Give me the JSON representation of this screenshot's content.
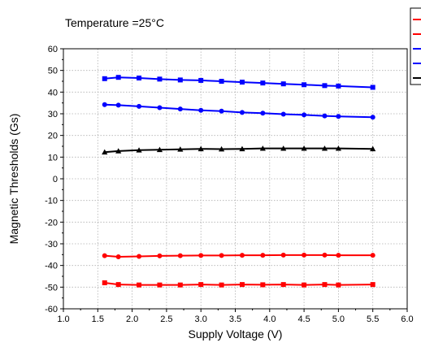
{
  "chart_data": {
    "type": "line",
    "annotation": "Temperature =25°C",
    "xlabel": "Supply Voltage (V)",
    "ylabel": "Magnetic Thresholds (Gs)",
    "xlim": [
      1.0,
      6.0
    ],
    "ylim": [
      -60,
      60
    ],
    "x_ticks": [
      "1.0",
      "1.5",
      "2.0",
      "2.5",
      "3.0",
      "3.5",
      "4.0",
      "4.5",
      "5.0",
      "5.5",
      "6.0"
    ],
    "y_ticks": [
      "-60",
      "-50",
      "-40",
      "-30",
      "-20",
      "-10",
      "0",
      "10",
      "20",
      "30",
      "40",
      "50",
      "60"
    ],
    "grid": true,
    "legend_position": "top-right",
    "x": [
      1.6,
      1.8,
      2.1,
      2.4,
      2.7,
      3.0,
      3.3,
      3.6,
      3.9,
      4.2,
      4.5,
      4.8,
      5.0,
      5.5
    ],
    "series": [
      {
        "color": "#ff0000",
        "marker": "square",
        "values": [
          -48.0,
          -48.8,
          -49.0,
          -49.0,
          -49.0,
          -48.8,
          -49.0,
          -48.8,
          -48.9,
          -48.8,
          -49.0,
          -48.8,
          -49.0,
          -48.8
        ]
      },
      {
        "color": "#ff0000",
        "marker": "circle",
        "values": [
          -35.5,
          -36.0,
          -35.8,
          -35.6,
          -35.5,
          -35.4,
          -35.4,
          -35.3,
          -35.3,
          -35.2,
          -35.2,
          -35.2,
          -35.3,
          -35.3
        ]
      },
      {
        "color": "#0000ff",
        "marker": "square",
        "values": [
          46.2,
          46.8,
          46.5,
          46.0,
          45.6,
          45.4,
          45.0,
          44.6,
          44.2,
          43.8,
          43.4,
          43.0,
          42.8,
          42.2
        ]
      },
      {
        "color": "#0000ff",
        "marker": "circle",
        "values": [
          34.2,
          34.0,
          33.4,
          32.8,
          32.2,
          31.6,
          31.2,
          30.6,
          30.3,
          29.8,
          29.5,
          29.0,
          28.8,
          28.4
        ]
      },
      {
        "color": "#000000",
        "marker": "triangle",
        "values": [
          12.3,
          12.8,
          13.2,
          13.4,
          13.6,
          13.8,
          13.7,
          13.8,
          14.0,
          14.0,
          14.0,
          14.0,
          14.0,
          13.8
        ]
      }
    ]
  }
}
